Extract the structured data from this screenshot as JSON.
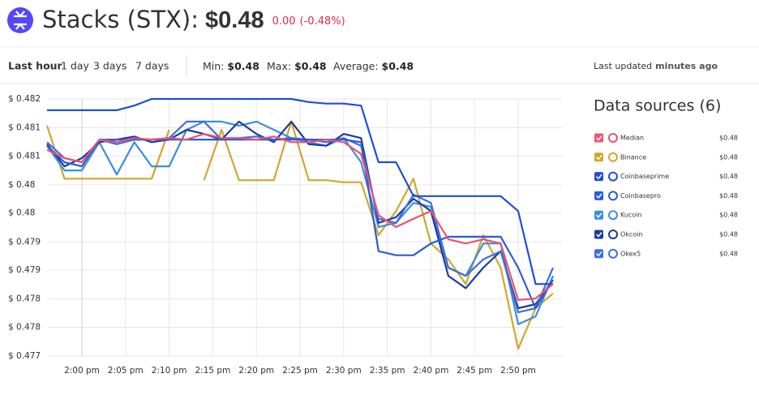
{
  "header": {
    "title": "Stacks (STX):",
    "price": "$0.48",
    "change": "0.00",
    "change_percent": "(-0.48%)"
  },
  "controls": {
    "ranges": [
      "Last hour",
      "1 day",
      "3 days",
      "7 days"
    ],
    "stats": [
      {
        "label": "Min:",
        "value": "$0.48"
      },
      {
        "label": "Max:",
        "value": "$0.48"
      },
      {
        "label": "Average:",
        "value": "$0.48"
      }
    ],
    "updated_label": "Last updated",
    "updated_value": "minutes ago"
  },
  "legend_title": "Data sources (6)",
  "chart_data": {
    "type": "line",
    "x": [
      "1:56 pm",
      "1:58 pm",
      "2:00 pm",
      "2:02 pm",
      "2:04 pm",
      "2:06 pm",
      "2:08 pm",
      "2:10 pm",
      "2:12 pm",
      "2:14 pm",
      "2:16 pm",
      "2:18 pm",
      "2:20 pm",
      "2:22 pm",
      "2:24 pm",
      "2:26 pm",
      "2:28 pm",
      "2:30 pm",
      "2:32 pm",
      "2:34 pm",
      "2:36 pm",
      "2:38 pm",
      "2:40 pm",
      "2:42 pm",
      "2:44 pm",
      "2:46 pm",
      "2:48 pm",
      "2:50 pm",
      "2:52 pm",
      "2:54 pm"
    ],
    "xticks": [
      "2:00 pm",
      "2:05 pm",
      "2:10 pm",
      "2:15 pm",
      "2:20 pm",
      "2:25 pm",
      "2:30 pm",
      "2:35 pm",
      "2:40 pm",
      "2:45 pm",
      "2:50 pm"
    ],
    "ylim": [
      0.477,
      0.482
    ],
    "yticks": [
      {
        "value": 0.482,
        "label": "$ 0.482"
      },
      {
        "value": 0.48144,
        "label": "$ 0.481"
      },
      {
        "value": 0.48089,
        "label": "$ 0.481"
      },
      {
        "value": 0.48033,
        "label": "$ 0.48"
      },
      {
        "value": 0.47978,
        "label": "$ 0.48"
      },
      {
        "value": 0.47922,
        "label": "$ 0.479"
      },
      {
        "value": 0.47867,
        "label": "$ 0.479"
      },
      {
        "value": 0.47811,
        "label": "$ 0.478"
      },
      {
        "value": 0.47756,
        "label": "$ 0.478"
      },
      {
        "value": 0.477,
        "label": "$ 0.477"
      }
    ],
    "grid": true,
    "series": [
      {
        "name": "Median",
        "color": "#f0506e",
        "price": "$0.48",
        "values": [
          0.48101,
          0.48085,
          0.48077,
          0.48121,
          0.48116,
          0.48124,
          0.48121,
          0.48124,
          0.48121,
          0.48132,
          0.48124,
          0.48124,
          0.48121,
          0.48127,
          0.48116,
          0.48116,
          0.48121,
          0.48116,
          0.48093,
          0.47974,
          0.47951,
          0.47967,
          0.47982,
          0.47927,
          0.47919,
          0.47927,
          0.47919,
          0.47809,
          0.47812,
          0.4784
        ]
      },
      {
        "name": "Binance",
        "color": "#d4a52a",
        "price": "$0.48",
        "values": [
          0.48148,
          0.48045,
          0.48045,
          0.48045,
          0.48045,
          0.48045,
          0.48045,
          0.4814,
          null,
          0.48042,
          0.4814,
          0.48042,
          0.48042,
          0.48042,
          0.48156,
          0.48042,
          0.48042,
          0.48038,
          0.48038,
          0.47935,
          0.47982,
          0.48045,
          0.47919,
          0.47888,
          0.4784,
          0.47935,
          0.47872,
          0.47714,
          0.47793,
          0.47822
        ]
      },
      {
        "name": "Coinbaseprime",
        "color": "#1f4fd8",
        "price": "$0.48",
        "values": [
          0.48178,
          0.48178,
          0.48178,
          0.48178,
          0.48178,
          0.48187,
          0.482,
          0.482,
          0.482,
          0.482,
          0.482,
          0.482,
          0.482,
          0.482,
          0.482,
          0.48194,
          0.48191,
          0.48191,
          0.48187,
          0.48077,
          0.48077,
          0.48011,
          0.48011,
          0.48011,
          0.48011,
          0.48011,
          0.48011,
          0.47982,
          0.4784,
          0.4784
        ]
      },
      {
        "name": "Coinbasepro",
        "color": "#2a5bd7",
        "price": "$0.48",
        "values": [
          0.48109,
          0.48077,
          0.48069,
          0.48121,
          0.48121,
          0.48121,
          0.48121,
          0.48121,
          0.48121,
          0.48121,
          0.48121,
          0.48121,
          0.48121,
          0.48121,
          0.48121,
          0.48121,
          0.48121,
          0.48121,
          0.48116,
          0.47904,
          0.47896,
          0.47896,
          0.47919,
          0.47932,
          0.47932,
          0.47932,
          0.47932,
          0.47872,
          0.47793,
          0.47848
        ]
      },
      {
        "name": "Kucoin",
        "color": "#3a8fdc",
        "price": "$0.48",
        "values": [
          0.48109,
          0.48061,
          0.48061,
          0.48116,
          0.48053,
          0.48116,
          0.48069,
          0.48069,
          0.4814,
          0.48156,
          0.48156,
          0.48148,
          0.48156,
          0.4814,
          0.48124,
          0.48116,
          0.48109,
          0.48124,
          0.48077,
          0.47951,
          0.47959,
          0.47998,
          0.4799,
          0.47872,
          0.47856,
          0.47919,
          0.47919,
          0.47762,
          0.47777,
          0.47856
        ]
      },
      {
        "name": "Okcoin",
        "color": "#1c3b9e",
        "price": "$0.48",
        "values": [
          0.48112,
          0.48069,
          0.48085,
          0.48116,
          0.48121,
          0.48127,
          0.48116,
          0.48121,
          0.4814,
          0.48132,
          0.48121,
          0.48156,
          0.48132,
          0.48116,
          0.48156,
          0.48112,
          0.48109,
          0.48132,
          0.48124,
          0.47959,
          0.4797,
          0.48006,
          0.47982,
          0.47856,
          0.47832,
          0.47872,
          0.47904,
          0.47793,
          0.47801,
          0.47848
        ]
      },
      {
        "name": "Okex5",
        "color": "#3b6fe0",
        "price": "$0.48",
        "values": [
          0.48116,
          0.48085,
          0.48077,
          0.48121,
          0.48112,
          0.48121,
          0.48121,
          0.48124,
          0.48156,
          0.48156,
          0.48121,
          0.48124,
          0.48127,
          0.48121,
          0.48124,
          0.48121,
          0.48116,
          0.48124,
          0.48109,
          0.47967,
          0.47959,
          0.48014,
          0.47998,
          0.47872,
          0.47856,
          0.47888,
          0.47904,
          0.47785,
          0.47793,
          0.47872
        ]
      }
    ]
  }
}
